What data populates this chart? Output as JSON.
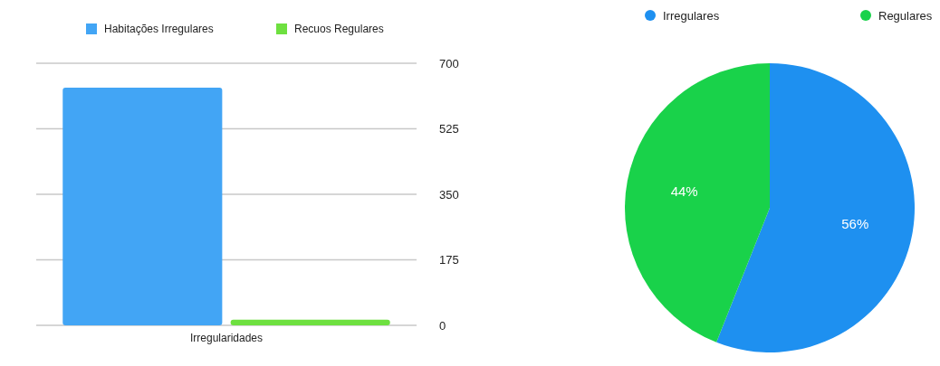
{
  "chart_data": [
    {
      "type": "bar",
      "categories": [
        "Irregularidades"
      ],
      "series": [
        {
          "name": "Habitações Irregulares",
          "color": "#42a5f5",
          "values": [
            635
          ]
        },
        {
          "name": "Recuos Regulares",
          "color": "#6ee040",
          "values": [
            15
          ]
        }
      ],
      "ylim": [
        0,
        700
      ],
      "yticks": [
        0,
        175,
        350,
        525,
        700
      ],
      "grid": "y",
      "legend": "top"
    },
    {
      "type": "pie",
      "categories": [
        "Irregulares",
        "Regulares"
      ],
      "values": [
        56,
        44
      ],
      "colors": [
        "#1e90f0",
        "#19d24a"
      ],
      "value_labels": [
        "56%",
        "44%"
      ],
      "legend": "top"
    }
  ]
}
